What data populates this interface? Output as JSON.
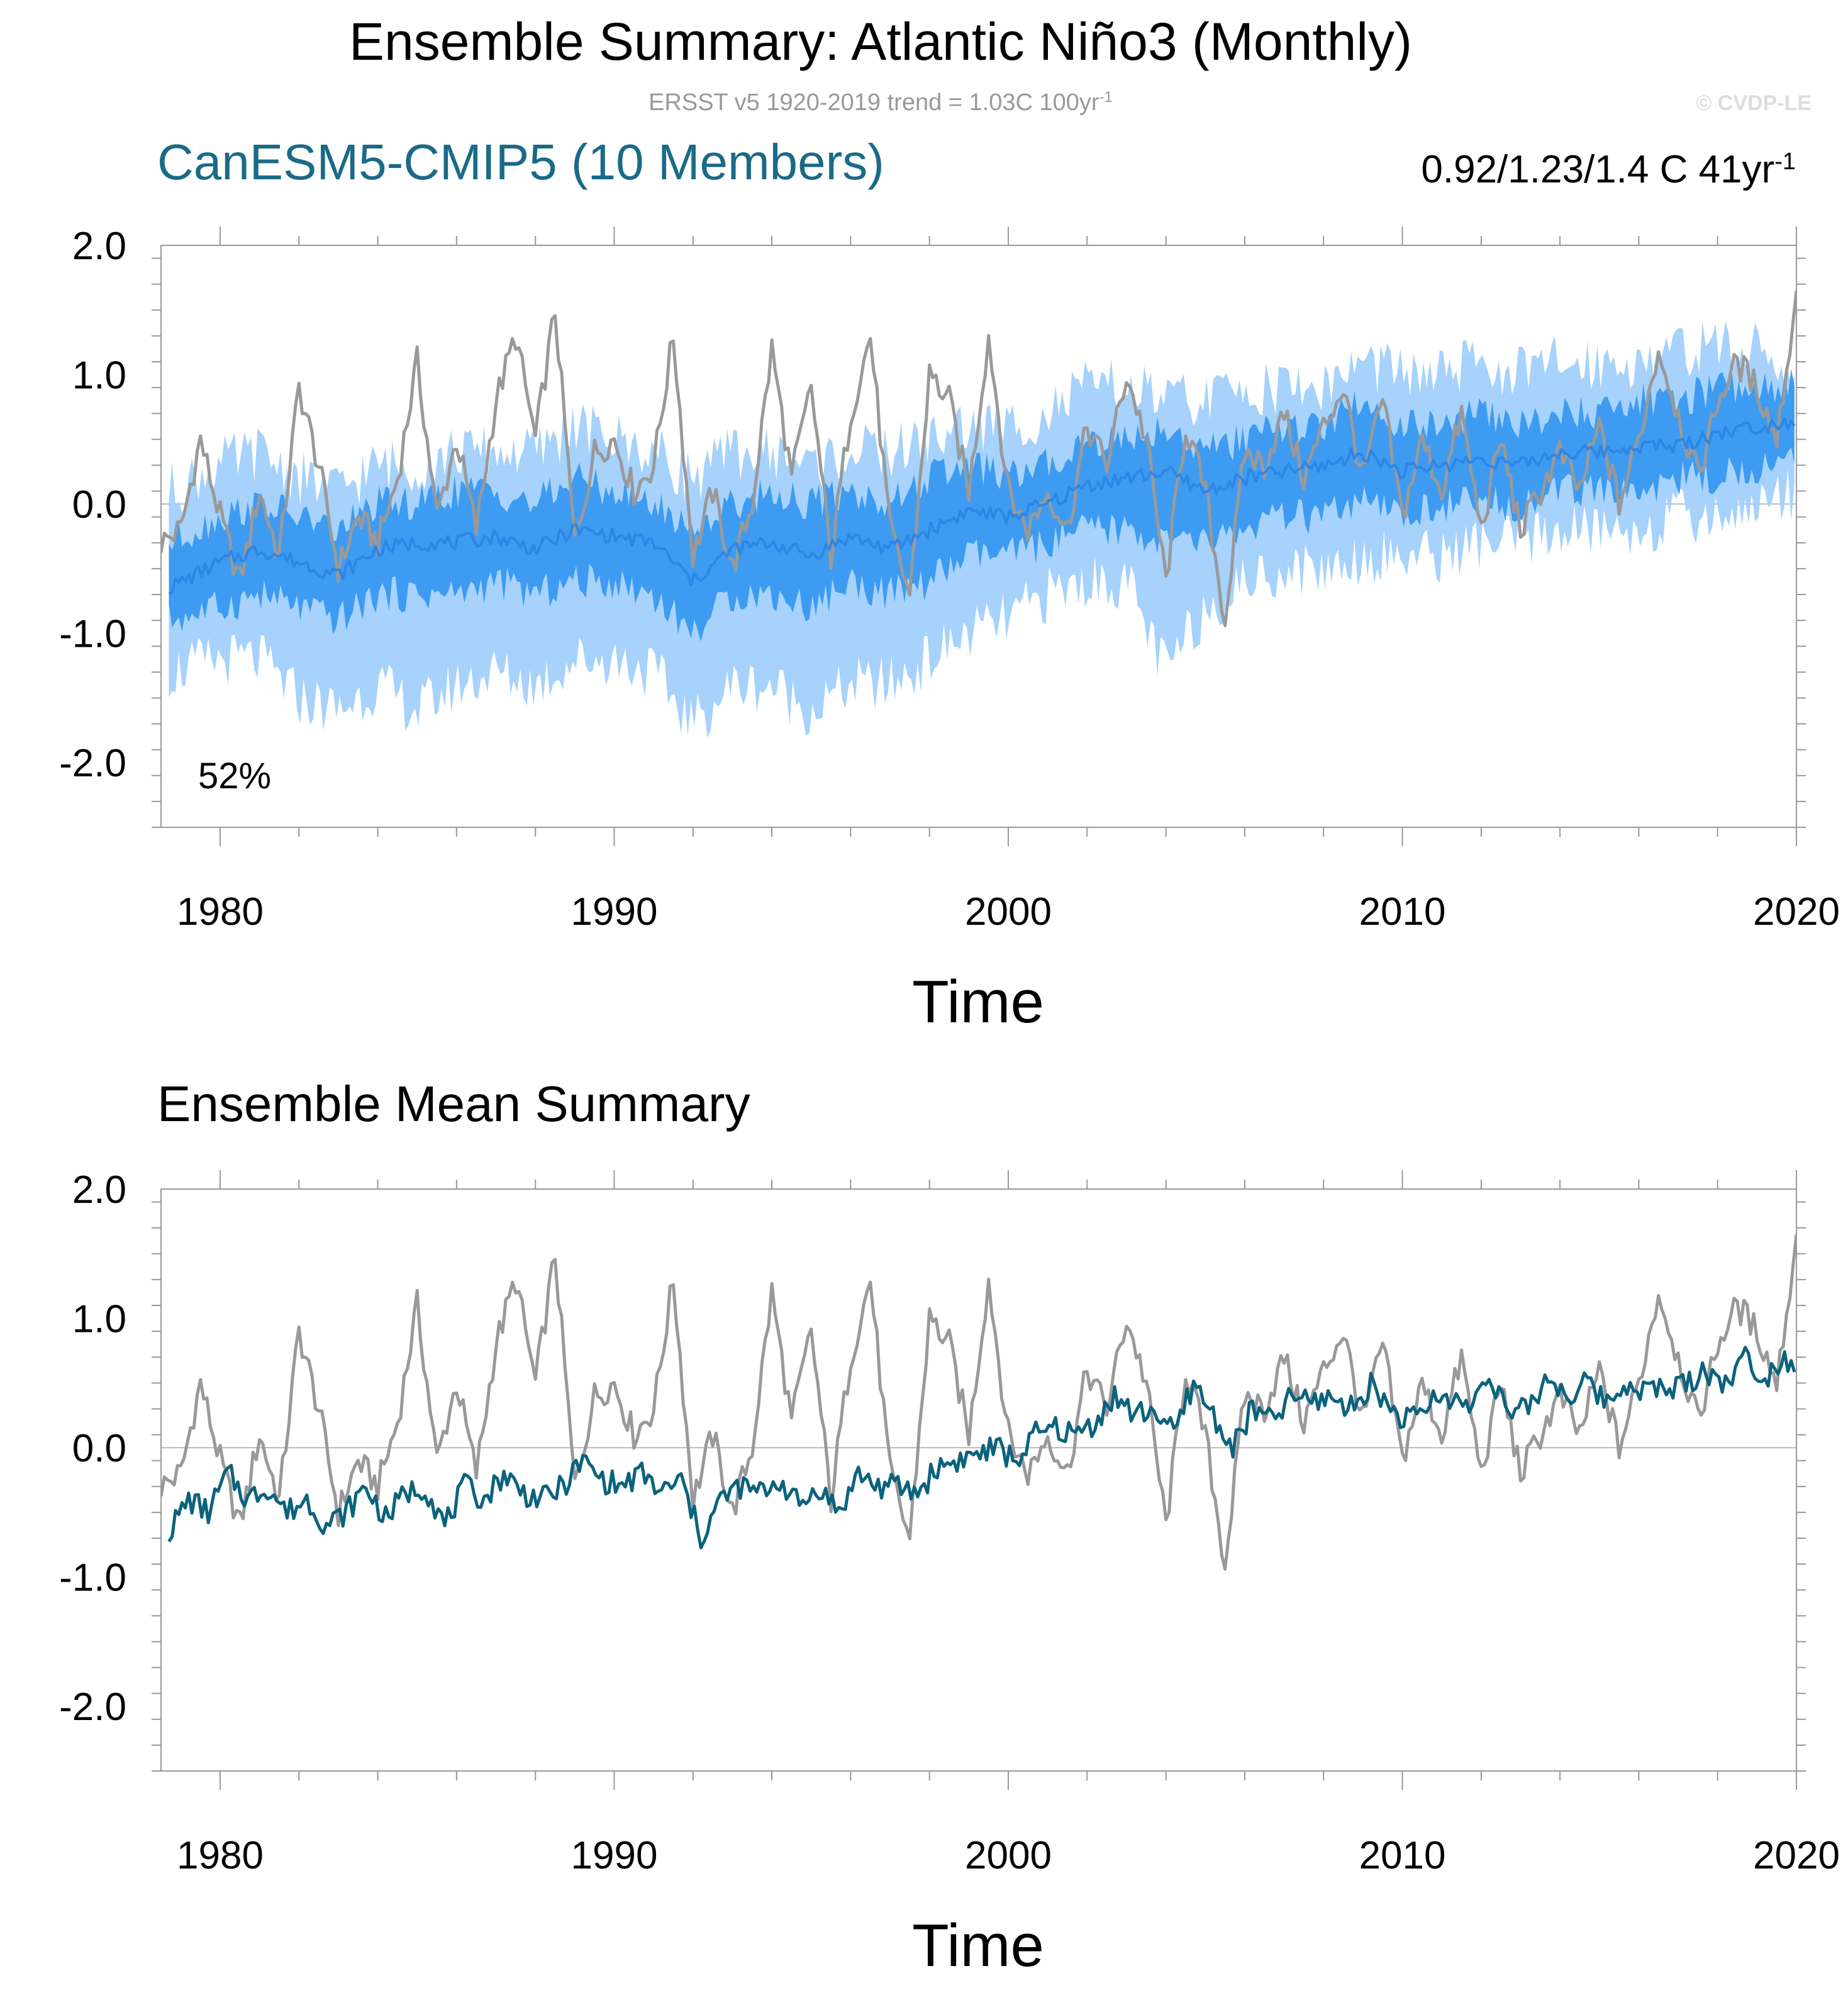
{
  "header": {
    "title": "Ensemble Summary: Atlantic Niño3 (Monthly)",
    "obs_note": "ERSST v5 1920-2019 trend = 1.03C 100yr",
    "obs_note_sup": "-1",
    "credit": "© CVDP-LE"
  },
  "colors": {
    "obs": "#999999",
    "spread_outer": "#a6d2fb",
    "spread_inner": "#3d9bf2",
    "ens_mean_top": "#2d86e6",
    "ens_mean_bottom": "#0b627d",
    "model_label": "#1a6a88",
    "zero_line": "#bbbbbb",
    "frame": "#999999",
    "text": "#000000"
  },
  "chart_data": [
    {
      "type": "line",
      "panel": "top",
      "title": "CanESM5-CMIP5 (10 Members)",
      "trend_label": "0.92/1.23/1.4 C 41yr",
      "trend_label_sup": "-1",
      "percent_label": "52%",
      "xlabel": "Time",
      "ylabel": "",
      "xlim": [
        1978.5,
        2020
      ],
      "ylim": [
        -2.5,
        2.0
      ],
      "xticks": [
        1980,
        1990,
        2000,
        2010,
        2020
      ],
      "xtick_labels": [
        "1980",
        "1990",
        "2000",
        "2010",
        "2020"
      ],
      "yticks": [
        2.0,
        1.0,
        0.0,
        -1.0,
        -2.0
      ],
      "ytick_labels": [
        "2.0",
        "1.0",
        "0.0",
        "-1.0",
        "-2.0"
      ],
      "series": [
        {
          "name": "ERSST v5 observations",
          "x": [
            1978.5,
            1979,
            1979.5,
            1980,
            1980.5,
            1981,
            1981.5,
            1982,
            1982.5,
            1983,
            1983.5,
            1984,
            1984.5,
            1985,
            1985.5,
            1986,
            1986.5,
            1987,
            1987.5,
            1988,
            1988.5,
            1989,
            1989.5,
            1990,
            1990.5,
            1991,
            1991.5,
            1992,
            1992.5,
            1993,
            1993.5,
            1994,
            1994.5,
            1995,
            1995.5,
            1996,
            1996.5,
            1997,
            1997.5,
            1998,
            1998.5,
            1999,
            1999.5,
            2000,
            2000.5,
            2001,
            2001.5,
            2002,
            2002.5,
            2003,
            2003.5,
            2004,
            2004.5,
            2005,
            2005.5,
            2006,
            2006.5,
            2007,
            2007.5,
            2008,
            2008.5,
            2009,
            2009.5,
            2010,
            2010.5,
            2011,
            2011.5,
            2012,
            2012.5,
            2013,
            2013.5,
            2014,
            2014.5,
            2015,
            2015.5,
            2016,
            2016.5,
            2017,
            2017.5,
            2018,
            2018.5,
            2019,
            2019.5,
            2020
          ],
          "values": [
            -0.3,
            -0.2,
            0.5,
            -0.1,
            -0.6,
            0.1,
            -0.4,
            0.9,
            0.3,
            -0.5,
            -0.1,
            -0.3,
            0.2,
            1.1,
            -0.1,
            0.5,
            -0.2,
            0.8,
            1.3,
            0.5,
            1.5,
            -0.3,
            0.4,
            0.5,
            0.1,
            0.3,
            1.3,
            -0.4,
            0.1,
            -0.5,
            0.0,
            1.2,
            0.2,
            0.9,
            -0.4,
            0.7,
            1.3,
            -0.2,
            -0.7,
            1.0,
            0.8,
            0.1,
            1.3,
            0.1,
            -0.2,
            0.1,
            -0.2,
            0.6,
            0.3,
            1.0,
            0.5,
            -0.6,
            0.6,
            0.1,
            -0.9,
            0.4,
            0.3,
            0.7,
            0.2,
            0.6,
            0.9,
            0.2,
            0.8,
            -0.1,
            0.5,
            0.1,
            0.7,
            -0.2,
            0.5,
            -0.2,
            0.1,
            0.4,
            0.1,
            0.6,
            0.0,
            0.5,
            1.2,
            0.7,
            0.2,
            0.8,
            1.1,
            0.9,
            0.5,
            1.6
          ]
        },
        {
          "name": "Ensemble mean",
          "x": [
            1978.7,
            1980,
            1981,
            1982,
            1983,
            1984,
            1985,
            1986,
            1987,
            1988,
            1989,
            1990,
            1991,
            1992,
            1993,
            1994,
            1995,
            1996,
            1997,
            1998,
            1999,
            2000,
            2001,
            2002,
            2003,
            2004,
            2005,
            2006,
            2007,
            2008,
            2009,
            2010,
            2011,
            2012,
            2013,
            2014,
            2015,
            2016,
            2017,
            2018,
            2019,
            2020
          ],
          "values": [
            -0.65,
            -0.45,
            -0.35,
            -0.45,
            -0.55,
            -0.35,
            -0.3,
            -0.3,
            -0.25,
            -0.35,
            -0.2,
            -0.25,
            -0.3,
            -0.6,
            -0.35,
            -0.3,
            -0.4,
            -0.25,
            -0.35,
            -0.2,
            -0.05,
            -0.1,
            0.0,
            0.15,
            0.2,
            0.25,
            0.1,
            0.2,
            0.25,
            0.3,
            0.4,
            0.25,
            0.3,
            0.35,
            0.3,
            0.4,
            0.4,
            0.45,
            0.45,
            0.55,
            0.6,
            0.65
          ]
        }
      ],
      "spread_outer_min": [
        -1.3,
        -1.2,
        -1.2,
        -1.5,
        -1.6,
        -1.4,
        -1.6,
        -1.4,
        -1.3,
        -1.4,
        -1.2,
        -1.2,
        -1.3,
        -1.7,
        -1.4,
        -1.4,
        -1.6,
        -1.4,
        -1.4,
        -1.2,
        -1.0,
        -0.9,
        -0.7,
        -0.6,
        -0.6,
        -1.3,
        -0.8,
        -0.6,
        -0.5,
        -0.5,
        -0.4,
        -0.4,
        -0.4,
        -0.3,
        -0.3,
        -0.2,
        -0.2,
        -0.2,
        -0.1,
        -0.1,
        0.0,
        0.1
      ],
      "spread_outer_max": [
        0.1,
        0.3,
        0.4,
        0.2,
        0.1,
        0.3,
        0.3,
        0.4,
        0.4,
        0.4,
        0.6,
        0.5,
        0.4,
        0.2,
        0.4,
        0.4,
        0.3,
        0.4,
        0.4,
        0.5,
        0.6,
        0.6,
        0.7,
        0.9,
        0.9,
        0.8,
        0.8,
        0.9,
        0.9,
        0.9,
        1.1,
        1.0,
        1.0,
        1.1,
        1.0,
        1.1,
        1.1,
        1.1,
        1.2,
        1.2,
        1.2,
        1.0
      ],
      "spread_inner_min": [
        -0.9,
        -0.8,
        -0.7,
        -0.8,
        -0.9,
        -0.7,
        -0.7,
        -0.7,
        -0.6,
        -0.7,
        -0.6,
        -0.6,
        -0.7,
        -1.0,
        -0.7,
        -0.7,
        -0.8,
        -0.6,
        -0.7,
        -0.6,
        -0.4,
        -0.4,
        -0.3,
        -0.2,
        -0.2,
        -0.3,
        -0.3,
        -0.2,
        -0.1,
        -0.1,
        0.0,
        -0.1,
        0.0,
        0.0,
        0.0,
        0.1,
        0.1,
        0.1,
        0.2,
        0.2,
        0.3,
        0.3
      ],
      "spread_inner_max": [
        -0.3,
        -0.1,
        0.0,
        -0.1,
        -0.2,
        0.0,
        0.0,
        0.1,
        0.1,
        0.0,
        0.2,
        0.1,
        0.0,
        -0.2,
        0.0,
        0.1,
        0.0,
        0.1,
        0.0,
        0.2,
        0.3,
        0.2,
        0.3,
        0.5,
        0.5,
        0.6,
        0.4,
        0.5,
        0.6,
        0.6,
        0.8,
        0.6,
        0.6,
        0.7,
        0.6,
        0.7,
        0.7,
        0.8,
        0.8,
        0.9,
        0.9,
        0.95
      ]
    },
    {
      "type": "line",
      "panel": "bottom",
      "title": "Ensemble Mean Summary",
      "xlabel": "Time",
      "ylabel": "",
      "xlim": [
        1978.5,
        2020
      ],
      "ylim": [
        -2.5,
        2.0
      ],
      "xticks": [
        1980,
        1990,
        2000,
        2010,
        2020
      ],
      "xtick_labels": [
        "1980",
        "1990",
        "2000",
        "2010",
        "2020"
      ],
      "yticks": [
        2.0,
        1.0,
        0.0,
        -1.0,
        -2.0
      ],
      "ytick_labels": [
        "2.0",
        "1.0",
        "0.0",
        "-1.0",
        "-2.0"
      ],
      "series": [
        {
          "name": "ERSST v5 observations",
          "x": [
            1978.5,
            1979,
            1979.5,
            1980,
            1980.5,
            1981,
            1981.5,
            1982,
            1982.5,
            1983,
            1983.5,
            1984,
            1984.5,
            1985,
            1985.5,
            1986,
            1986.5,
            1987,
            1987.5,
            1988,
            1988.5,
            1989,
            1989.5,
            1990,
            1990.5,
            1991,
            1991.5,
            1992,
            1992.5,
            1993,
            1993.5,
            1994,
            1994.5,
            1995,
            1995.5,
            1996,
            1996.5,
            1997,
            1997.5,
            1998,
            1998.5,
            1999,
            1999.5,
            2000,
            2000.5,
            2001,
            2001.5,
            2002,
            2002.5,
            2003,
            2003.5,
            2004,
            2004.5,
            2005,
            2005.5,
            2006,
            2006.5,
            2007,
            2007.5,
            2008,
            2008.5,
            2009,
            2009.5,
            2010,
            2010.5,
            2011,
            2011.5,
            2012,
            2012.5,
            2013,
            2013.5,
            2014,
            2014.5,
            2015,
            2015.5,
            2016,
            2016.5,
            2017,
            2017.5,
            2018,
            2018.5,
            2019,
            2019.5,
            2020
          ],
          "values": [
            -0.3,
            -0.2,
            0.5,
            -0.1,
            -0.6,
            0.1,
            -0.4,
            0.9,
            0.3,
            -0.5,
            -0.1,
            -0.3,
            0.2,
            1.1,
            -0.1,
            0.5,
            -0.2,
            0.8,
            1.3,
            0.5,
            1.5,
            -0.3,
            0.4,
            0.5,
            0.1,
            0.3,
            1.3,
            -0.4,
            0.1,
            -0.5,
            0.0,
            1.2,
            0.2,
            0.9,
            -0.4,
            0.7,
            1.3,
            -0.2,
            -0.7,
            1.0,
            0.8,
            0.1,
            1.3,
            0.1,
            -0.2,
            0.1,
            -0.2,
            0.6,
            0.3,
            1.0,
            0.5,
            -0.6,
            0.6,
            0.1,
            -0.9,
            0.4,
            0.3,
            0.7,
            0.2,
            0.6,
            0.9,
            0.2,
            0.8,
            -0.1,
            0.5,
            0.1,
            0.7,
            -0.2,
            0.5,
            -0.2,
            0.1,
            0.4,
            0.1,
            0.6,
            0.0,
            0.5,
            1.2,
            0.7,
            0.2,
            0.8,
            1.1,
            0.9,
            0.5,
            1.6
          ]
        },
        {
          "name": "Ensemble mean",
          "x": [
            1978.7,
            1979.2,
            1979.7,
            1980.2,
            1980.7,
            1981.2,
            1981.7,
            1982.2,
            1982.7,
            1983.2,
            1983.7,
            1984.2,
            1984.7,
            1985.2,
            1985.7,
            1986.2,
            1986.7,
            1987.2,
            1987.7,
            1988.2,
            1988.7,
            1989.2,
            1989.7,
            1990.2,
            1990.7,
            1991.2,
            1991.7,
            1992.2,
            1992.7,
            1993.2,
            1993.7,
            1994.2,
            1994.7,
            1995.2,
            1995.7,
            1996.2,
            1996.7,
            1997.2,
            1997.7,
            1998.2,
            1998.7,
            1999.2,
            1999.7,
            2000.2,
            2000.7,
            2001.2,
            2001.7,
            2002.2,
            2002.7,
            2003.2,
            2003.7,
            2004.2,
            2004.7,
            2005.2,
            2005.7,
            2006.2,
            2006.7,
            2007.2,
            2007.7,
            2008.2,
            2008.7,
            2009.2,
            2009.7,
            2010.2,
            2010.7,
            2011.2,
            2011.7,
            2012.2,
            2012.7,
            2013.2,
            2013.7,
            2014.2,
            2014.7,
            2015.2,
            2015.7,
            2016.2,
            2016.7,
            2017.2,
            2017.7,
            2018.2,
            2018.7,
            2019.2,
            2019.7,
            2020
          ],
          "values": [
            -0.65,
            -0.4,
            -0.5,
            -0.2,
            -0.4,
            -0.3,
            -0.5,
            -0.4,
            -0.6,
            -0.5,
            -0.3,
            -0.55,
            -0.35,
            -0.3,
            -0.6,
            -0.3,
            -0.4,
            -0.2,
            -0.35,
            -0.4,
            -0.3,
            -0.1,
            -0.25,
            -0.3,
            -0.2,
            -0.35,
            -0.25,
            -0.7,
            -0.4,
            -0.3,
            -0.35,
            -0.25,
            -0.45,
            -0.3,
            -0.5,
            -0.2,
            -0.3,
            -0.3,
            -0.35,
            -0.15,
            -0.1,
            -0.05,
            0.0,
            -0.1,
            0.1,
            0.15,
            0.1,
            0.2,
            0.4,
            0.25,
            0.3,
            0.1,
            0.5,
            0.25,
            0.0,
            0.3,
            0.2,
            0.4,
            0.35,
            0.4,
            0.3,
            0.5,
            0.3,
            0.2,
            0.35,
            0.4,
            0.3,
            0.6,
            0.25,
            0.3,
            0.55,
            0.4,
            0.5,
            0.35,
            0.5,
            0.45,
            0.45,
            0.5,
            0.6,
            0.5,
            0.7,
            0.55,
            0.7,
            0.65
          ]
        }
      ]
    }
  ]
}
